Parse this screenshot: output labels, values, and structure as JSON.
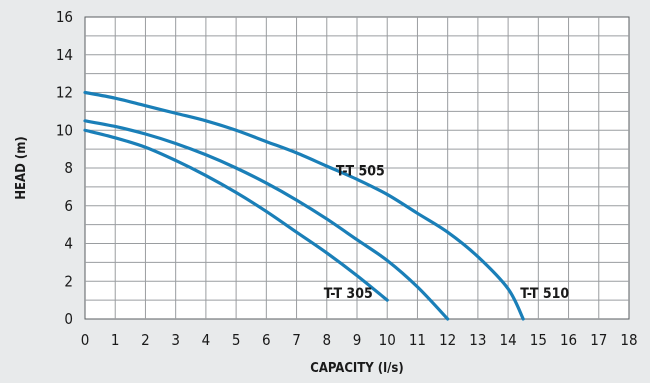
{
  "chart_data": {
    "type": "line",
    "title": "",
    "xlabel": "CAPACITY (l/s)",
    "ylabel": "HEAD (m)",
    "xlim": [
      0,
      18
    ],
    "ylim": [
      0,
      16
    ],
    "xticks": [
      0,
      1,
      2,
      3,
      4,
      5,
      6,
      7,
      8,
      9,
      10,
      11,
      12,
      13,
      14,
      15,
      16,
      17,
      18
    ],
    "yticks": [
      0,
      2,
      4,
      6,
      8,
      10,
      12,
      14,
      16
    ],
    "grid": true,
    "x_grid_step": 1,
    "y_grid_step": 1,
    "line_color": "#1a7fb8",
    "series": [
      {
        "name": "T-T 305",
        "points": [
          [
            0,
            10
          ],
          [
            1,
            9.6
          ],
          [
            2,
            9.1
          ],
          [
            3,
            8.4
          ],
          [
            4,
            7.6
          ],
          [
            5,
            6.7
          ],
          [
            6,
            5.7
          ],
          [
            7,
            4.6
          ],
          [
            8,
            3.5
          ],
          [
            9,
            2.3
          ],
          [
            10,
            1
          ]
        ]
      },
      {
        "name": "T-T 505",
        "points": [
          [
            0,
            10.5
          ],
          [
            1,
            10.2
          ],
          [
            2,
            9.8
          ],
          [
            3,
            9.3
          ],
          [
            4,
            8.7
          ],
          [
            5,
            8
          ],
          [
            6,
            7.2
          ],
          [
            7,
            6.3
          ],
          [
            8,
            5.3
          ],
          [
            9,
            4.2
          ],
          [
            10,
            3.1
          ],
          [
            11,
            1.7
          ],
          [
            12,
            0
          ]
        ]
      },
      {
        "name": "T-T 510",
        "points": [
          [
            0,
            12
          ],
          [
            1,
            11.7
          ],
          [
            2,
            11.3
          ],
          [
            3,
            10.9
          ],
          [
            4,
            10.5
          ],
          [
            5,
            10
          ],
          [
            6,
            9.4
          ],
          [
            7,
            8.8
          ],
          [
            8,
            8.1
          ],
          [
            9,
            7.4
          ],
          [
            10,
            6.6
          ],
          [
            11,
            5.6
          ],
          [
            12,
            4.6
          ],
          [
            13,
            3.3
          ],
          [
            14,
            1.6
          ],
          [
            14.5,
            0
          ]
        ]
      }
    ],
    "annotations": [
      {
        "text": "T-T 305",
        "x": 7.9,
        "y": 1.1
      },
      {
        "text": "T-T 505",
        "x": 8.3,
        "y": 7.6
      },
      {
        "text": "T-T 510",
        "x": 14.4,
        "y": 1.1
      }
    ]
  }
}
